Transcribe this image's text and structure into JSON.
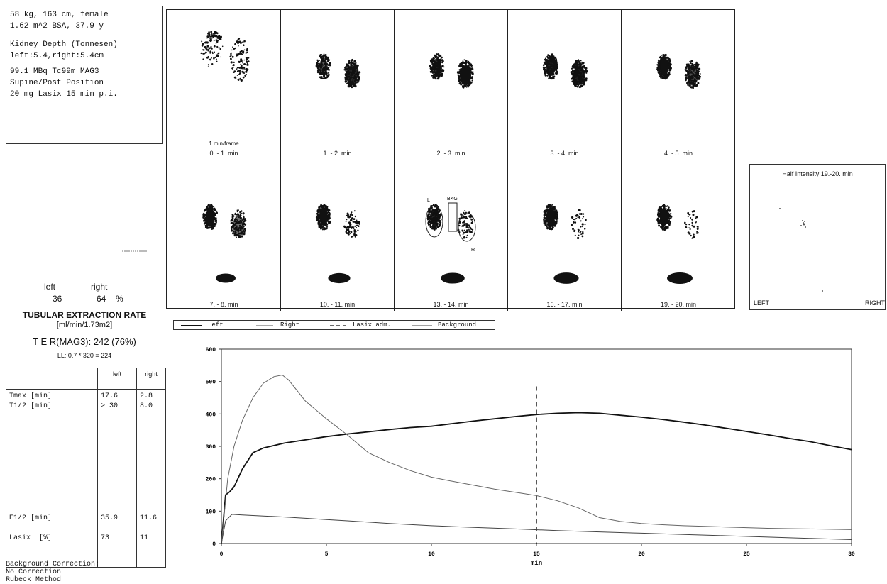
{
  "patient": {
    "line1": "58 kg, 163 cm, female",
    "line2": "1.62 m^2 BSA, 37.9 y",
    "line3": "Kidney Depth (Tonnesen)",
    "line4": "left:5.4,right:5.4cm",
    "line5": "99.1 MBq Tc99m MAG3",
    "line6": "Supine/Post Position",
    "line7": "20 mg Lasix 15 min p.i."
  },
  "frames": {
    "rate_label": "1 min/frame",
    "captions": [
      "0. - 1. min",
      "1. - 2. min",
      "2. - 3. min",
      "3. - 4. min",
      "4. - 5. min",
      "7. - 8. min",
      "10. - 11. min",
      "13. - 14. min",
      "16. - 17. min",
      "19. - 20. min"
    ],
    "roi_labels": {
      "left": "L",
      "background": "BKG",
      "right": "R"
    }
  },
  "half_intensity": {
    "title": "Half Intensity 19.-20. min",
    "left": "LEFT",
    "right": "RIGHT"
  },
  "split": {
    "left_label": "left",
    "right_label": "right",
    "left_value": "36",
    "right_value": "64",
    "unit": "%"
  },
  "ter": {
    "title": "TUBULAR EXTRACTION RATE",
    "unit": "[ml/min/1.73m2]",
    "value": "T E R(MAG3): 242  (76%)",
    "ll": "LL: 0.7 * 320 = 224"
  },
  "params": {
    "head_left": "left",
    "head_right": "right",
    "names": [
      "Tmax [min]",
      "T1/2 [min]",
      "E1/2 [min]",
      "Lasix  [%]"
    ],
    "left": [
      "17.6",
      "> 30",
      "35.9",
      "73"
    ],
    "right": [
      "2.8",
      "8.0",
      "11.6",
      "11"
    ]
  },
  "background_note": {
    "line1": "Background Correction:",
    "line2": "No Correction",
    "line3": "Rubeck Method"
  },
  "legend": {
    "left": "Left",
    "right": "Right",
    "lasix": "Lasix adm.",
    "background": "Background"
  },
  "chart_data": {
    "type": "line",
    "xlabel": "min",
    "xlim": [
      0,
      30
    ],
    "ylim": [
      0,
      600
    ],
    "xticks": [
      "0",
      "5",
      "10",
      "15",
      "20",
      "25",
      "30"
    ],
    "yticks": [
      "0",
      "100",
      "200",
      "300",
      "400",
      "500",
      "600"
    ],
    "lasix_x": 15,
    "series": [
      {
        "name": "Left",
        "color": "#111111",
        "x": [
          0,
          0.2,
          0.4,
          0.6,
          1,
          1.5,
          2,
          3,
          4,
          5,
          6,
          7,
          8,
          9,
          10,
          11,
          12,
          13,
          14,
          15,
          16,
          17,
          18,
          19,
          20,
          21,
          22,
          23,
          24,
          25,
          26,
          27,
          28,
          29,
          30
        ],
        "y": [
          0,
          150,
          160,
          175,
          230,
          280,
          295,
          310,
          320,
          330,
          338,
          345,
          352,
          358,
          362,
          370,
          378,
          385,
          392,
          398,
          402,
          404,
          402,
          396,
          390,
          383,
          375,
          366,
          356,
          346,
          336,
          325,
          315,
          302,
          290
        ]
      },
      {
        "name": "Right",
        "color": "#666666",
        "x": [
          0,
          0.3,
          0.6,
          1,
          1.5,
          2,
          2.5,
          2.9,
          3.2,
          4,
          5,
          6,
          7,
          8,
          9,
          10,
          11,
          12,
          13,
          14,
          15,
          16,
          17,
          18,
          19,
          20,
          21,
          22,
          23,
          24,
          25,
          26,
          27,
          28,
          29,
          30
        ],
        "y": [
          0,
          200,
          300,
          380,
          450,
          495,
          515,
          520,
          505,
          440,
          385,
          335,
          280,
          250,
          225,
          205,
          192,
          180,
          168,
          158,
          148,
          132,
          110,
          80,
          68,
          62,
          58,
          55,
          53,
          51,
          49,
          47,
          46,
          45,
          44,
          43
        ]
      },
      {
        "name": "Background",
        "color": "#444444",
        "x": [
          0,
          0.2,
          0.5,
          1,
          2,
          3,
          4,
          5,
          6,
          8,
          10,
          12,
          14,
          16,
          18,
          20,
          22,
          24,
          26,
          28,
          30
        ],
        "y": [
          0,
          70,
          90,
          88,
          85,
          82,
          78,
          74,
          70,
          62,
          55,
          50,
          45,
          40,
          36,
          32,
          28,
          24,
          20,
          16,
          12
        ]
      }
    ]
  },
  "colors": {
    "ink": "#111111",
    "paper": "#ffffff"
  }
}
